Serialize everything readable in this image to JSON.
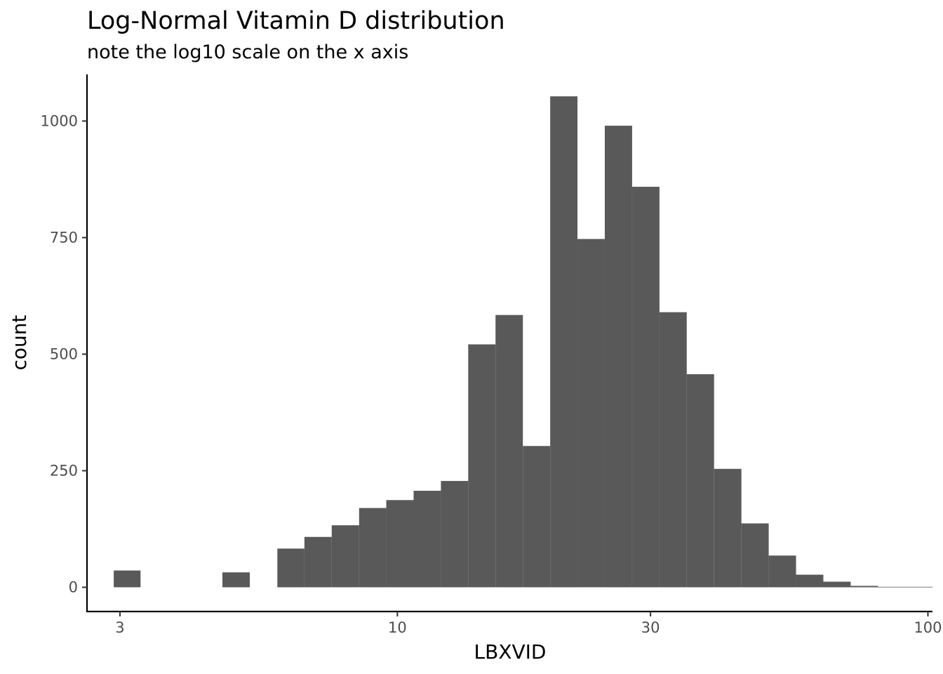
{
  "chart_data": {
    "type": "histogram",
    "title": "Log-Normal Vitamin D distribution",
    "subtitle": "note the log10 scale on the x axis",
    "xlabel": "LBXVID",
    "ylabel": "count",
    "x_scale": "log10",
    "xlim": [
      2.6,
      102
    ],
    "ylim": [
      -52,
      1100
    ],
    "x_ticks": [
      3,
      10,
      30,
      100
    ],
    "x_tick_labels": [
      "3",
      "10",
      "30",
      "100"
    ],
    "y_ticks": [
      0,
      250,
      500,
      750,
      1000
    ],
    "y_tick_labels": [
      "0",
      "250",
      "500",
      "750",
      "1000"
    ],
    "grid": false,
    "legend": "none",
    "bar_color": "#595959",
    "bins": [
      {
        "x0": 2.92,
        "x1": 3.28,
        "count": 36
      },
      {
        "x0": 3.28,
        "x1": 3.69,
        "count": 0
      },
      {
        "x0": 3.69,
        "x1": 4.16,
        "count": 0
      },
      {
        "x0": 4.16,
        "x1": 4.68,
        "count": 0
      },
      {
        "x0": 4.68,
        "x1": 5.27,
        "count": 32
      },
      {
        "x0": 5.27,
        "x1": 5.94,
        "count": 0
      },
      {
        "x0": 5.94,
        "x1": 6.68,
        "count": 83
      },
      {
        "x0": 6.68,
        "x1": 7.52,
        "count": 108
      },
      {
        "x0": 7.52,
        "x1": 8.47,
        "count": 133
      },
      {
        "x0": 8.47,
        "x1": 9.53,
        "count": 170
      },
      {
        "x0": 9.53,
        "x1": 10.73,
        "count": 187
      },
      {
        "x0": 10.73,
        "x1": 12.08,
        "count": 207
      },
      {
        "x0": 12.08,
        "x1": 13.6,
        "count": 228
      },
      {
        "x0": 13.6,
        "x1": 15.31,
        "count": 521
      },
      {
        "x0": 15.31,
        "x1": 17.24,
        "count": 584
      },
      {
        "x0": 17.24,
        "x1": 19.41,
        "count": 303
      },
      {
        "x0": 19.41,
        "x1": 21.85,
        "count": 1053
      },
      {
        "x0": 21.85,
        "x1": 24.6,
        "count": 747
      },
      {
        "x0": 24.6,
        "x1": 27.7,
        "count": 990
      },
      {
        "x0": 27.7,
        "x1": 31.19,
        "count": 859
      },
      {
        "x0": 31.19,
        "x1": 35.11,
        "count": 590
      },
      {
        "x0": 35.11,
        "x1": 39.53,
        "count": 457
      },
      {
        "x0": 39.53,
        "x1": 44.51,
        "count": 254
      },
      {
        "x0": 44.51,
        "x1": 50.11,
        "count": 137
      },
      {
        "x0": 50.11,
        "x1": 56.42,
        "count": 68
      },
      {
        "x0": 56.42,
        "x1": 63.52,
        "count": 27
      },
      {
        "x0": 63.52,
        "x1": 71.52,
        "count": 12
      },
      {
        "x0": 71.52,
        "x1": 80.52,
        "count": 3
      },
      {
        "x0": 80.52,
        "x1": 90.66,
        "count": 1
      },
      {
        "x0": 90.66,
        "x1": 102.07,
        "count": 1
      }
    ]
  }
}
